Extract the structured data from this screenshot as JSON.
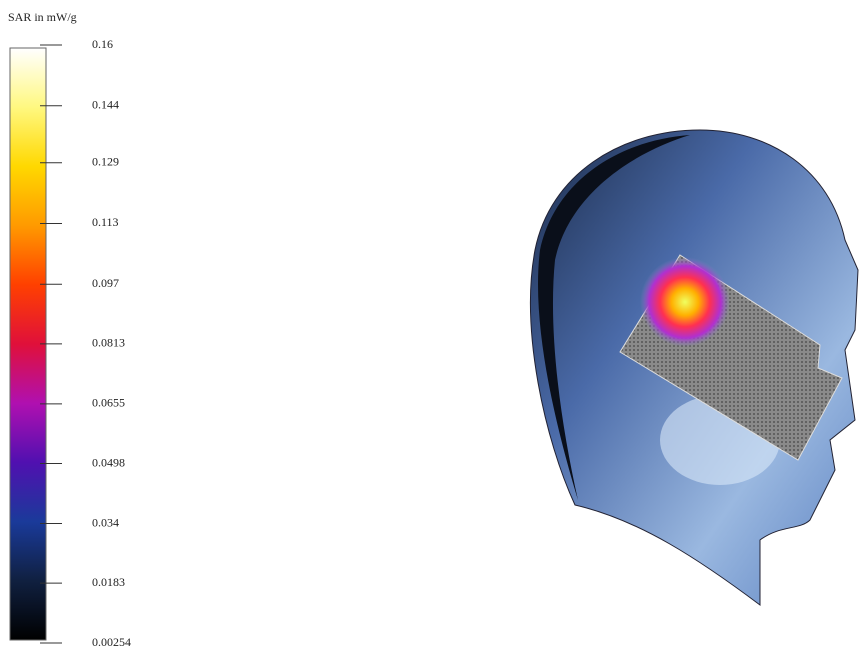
{
  "colorbar": {
    "title": "SAR in mW/g",
    "range": [
      0.00254,
      0.16
    ],
    "ticks": [
      0.16,
      0.144,
      0.129,
      0.113,
      0.097,
      0.0813,
      0.0655,
      0.0498,
      0.034,
      0.0183,
      0.00254
    ]
  }
}
